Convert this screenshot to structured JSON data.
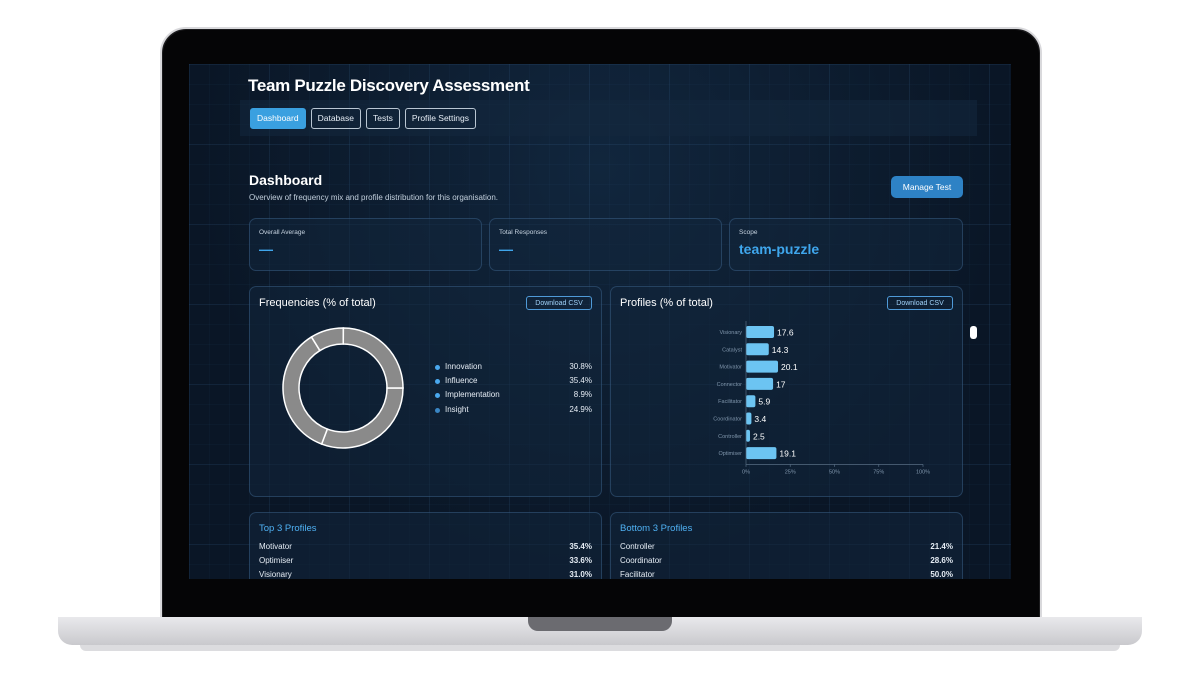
{
  "app": {
    "title": "Team Puzzle Discovery Assessment"
  },
  "tabs": [
    {
      "label": "Dashboard",
      "active": true
    },
    {
      "label": "Database",
      "active": false
    },
    {
      "label": "Tests",
      "active": false
    },
    {
      "label": "Profile Settings",
      "active": false
    }
  ],
  "dashboard": {
    "heading": "Dashboard",
    "subtitle": "Overview of frequency mix and profile distribution for this organisation.",
    "manage_button": "Manage Test"
  },
  "stats": {
    "overall_average": {
      "label": "Overall Average",
      "value": "—"
    },
    "total_responses": {
      "label": "Total Responses",
      "value": "—"
    },
    "scope": {
      "label": "Scope",
      "value": "team-puzzle"
    }
  },
  "frequencies": {
    "title": "Frequencies (% of total)",
    "download_label": "Download CSV",
    "legend": [
      {
        "name": "Innovation",
        "value": "30.8%",
        "color": "#4aa8ee"
      },
      {
        "name": "Influence",
        "value": "35.4%",
        "color": "#4aa8ee"
      },
      {
        "name": "Implementation",
        "value": "8.9%",
        "color": "#4aa8ee"
      },
      {
        "name": "Insight",
        "value": "24.9%",
        "color": "#3a86c4"
      }
    ]
  },
  "profiles": {
    "title": "Profiles (% of total)",
    "download_label": "Download CSV"
  },
  "top_profiles": {
    "title": "Top 3 Profiles",
    "rows": [
      {
        "name": "Motivator",
        "value": "35.4%"
      },
      {
        "name": "Optimiser",
        "value": "33.6%"
      },
      {
        "name": "Visionary",
        "value": "31.0%"
      }
    ]
  },
  "bottom_profiles": {
    "title": "Bottom 3 Profiles",
    "rows": [
      {
        "name": "Controller",
        "value": "21.4%"
      },
      {
        "name": "Coordinator",
        "value": "28.6%"
      },
      {
        "name": "Facilitator",
        "value": "50.0%"
      }
    ]
  },
  "chart_data": [
    {
      "type": "pie",
      "title": "Frequencies (% of total)",
      "categories": [
        "Innovation",
        "Influence",
        "Implementation",
        "Insight"
      ],
      "values": [
        30.8,
        35.4,
        8.9,
        24.9
      ],
      "donut": true,
      "colors": [
        "#8a8a8a"
      ]
    },
    {
      "type": "bar",
      "orientation": "horizontal",
      "title": "Profiles (% of total)",
      "categories": [
        "Visionary",
        "Catalyst",
        "Motivator",
        "Connector",
        "Facilitator",
        "Coordinator",
        "Controller",
        "Optimiser"
      ],
      "values": [
        17.6,
        14.3,
        20.1,
        17,
        5.9,
        3.4,
        2.5,
        19.1
      ],
      "xlim": [
        0,
        100
      ],
      "xticks": [
        "0%",
        "25%",
        "50%",
        "75%",
        "100%"
      ],
      "bar_color": "#6cc4f2",
      "grid": false
    }
  ]
}
